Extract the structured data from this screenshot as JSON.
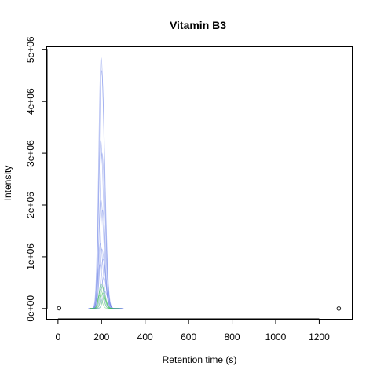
{
  "chart_data": {
    "type": "line",
    "title": "Vitamin B3",
    "xlabel": "Retention time (s)",
    "ylabel": "Intensity",
    "xlim": [
      -50,
      1350
    ],
    "ylim": [
      -200000,
      5050000
    ],
    "x_ticks": [
      0,
      200,
      400,
      600,
      800,
      1000,
      1200
    ],
    "x_tick_labels": [
      "0",
      "200",
      "400",
      "600",
      "800",
      "1000",
      "1200"
    ],
    "y_ticks": [
      0,
      1000000,
      2000000,
      3000000,
      4000000,
      5000000
    ],
    "y_tick_labels": [
      "0e+00",
      "1e+06",
      "2e+06",
      "3e+06",
      "4e+06",
      "5e+06"
    ],
    "grid": false,
    "legend": "none",
    "colors": {
      "blue_series": "#6b80e6",
      "green_series": "#35c44a",
      "marker": "#000000"
    },
    "points": [
      {
        "x": 5,
        "y": 5000
      },
      {
        "x": 1290,
        "y": 0
      }
    ],
    "series": [
      {
        "color": "blue_series",
        "apex": 198,
        "peak": 4850000,
        "left": 20,
        "right": 27
      },
      {
        "color": "blue_series",
        "apex": 200,
        "peak": 4600000,
        "left": 20,
        "right": 27
      },
      {
        "color": "blue_series",
        "apex": 196,
        "peak": 3250000,
        "left": 18,
        "right": 25
      },
      {
        "color": "blue_series",
        "apex": 202,
        "peak": 3000000,
        "left": 20,
        "right": 26
      },
      {
        "color": "blue_series",
        "apex": 197,
        "peak": 2100000,
        "left": 18,
        "right": 25
      },
      {
        "color": "blue_series",
        "apex": 204,
        "peak": 1900000,
        "left": 20,
        "right": 26
      },
      {
        "color": "blue_series",
        "apex": 194,
        "peak": 1250000,
        "left": 17,
        "right": 24
      },
      {
        "color": "blue_series",
        "apex": 201,
        "peak": 1150000,
        "left": 19,
        "right": 27
      },
      {
        "color": "blue_series",
        "apex": 207,
        "peak": 950000,
        "left": 20,
        "right": 26
      },
      {
        "color": "blue_series",
        "apex": 192,
        "peak": 850000,
        "left": 16,
        "right": 22
      },
      {
        "color": "blue_series",
        "apex": 210,
        "peak": 600000,
        "left": 19,
        "right": 24
      },
      {
        "color": "green_series",
        "apex": 198,
        "peak": 480000,
        "left": 17,
        "right": 24
      },
      {
        "color": "green_series",
        "apex": 203,
        "peak": 420000,
        "left": 18,
        "right": 25
      },
      {
        "color": "green_series",
        "apex": 195,
        "peak": 370000,
        "left": 16,
        "right": 23
      },
      {
        "color": "green_series",
        "apex": 206,
        "peak": 300000,
        "left": 17,
        "right": 22
      },
      {
        "color": "green_series",
        "apex": 190,
        "peak": 250000,
        "left": 15,
        "right": 21
      },
      {
        "color": "green_series",
        "apex": 212,
        "peak": 200000,
        "left": 16,
        "right": 21
      },
      {
        "color": "blue_series",
        "apex": 215,
        "peak": 330000,
        "left": 18,
        "right": 25
      }
    ]
  }
}
